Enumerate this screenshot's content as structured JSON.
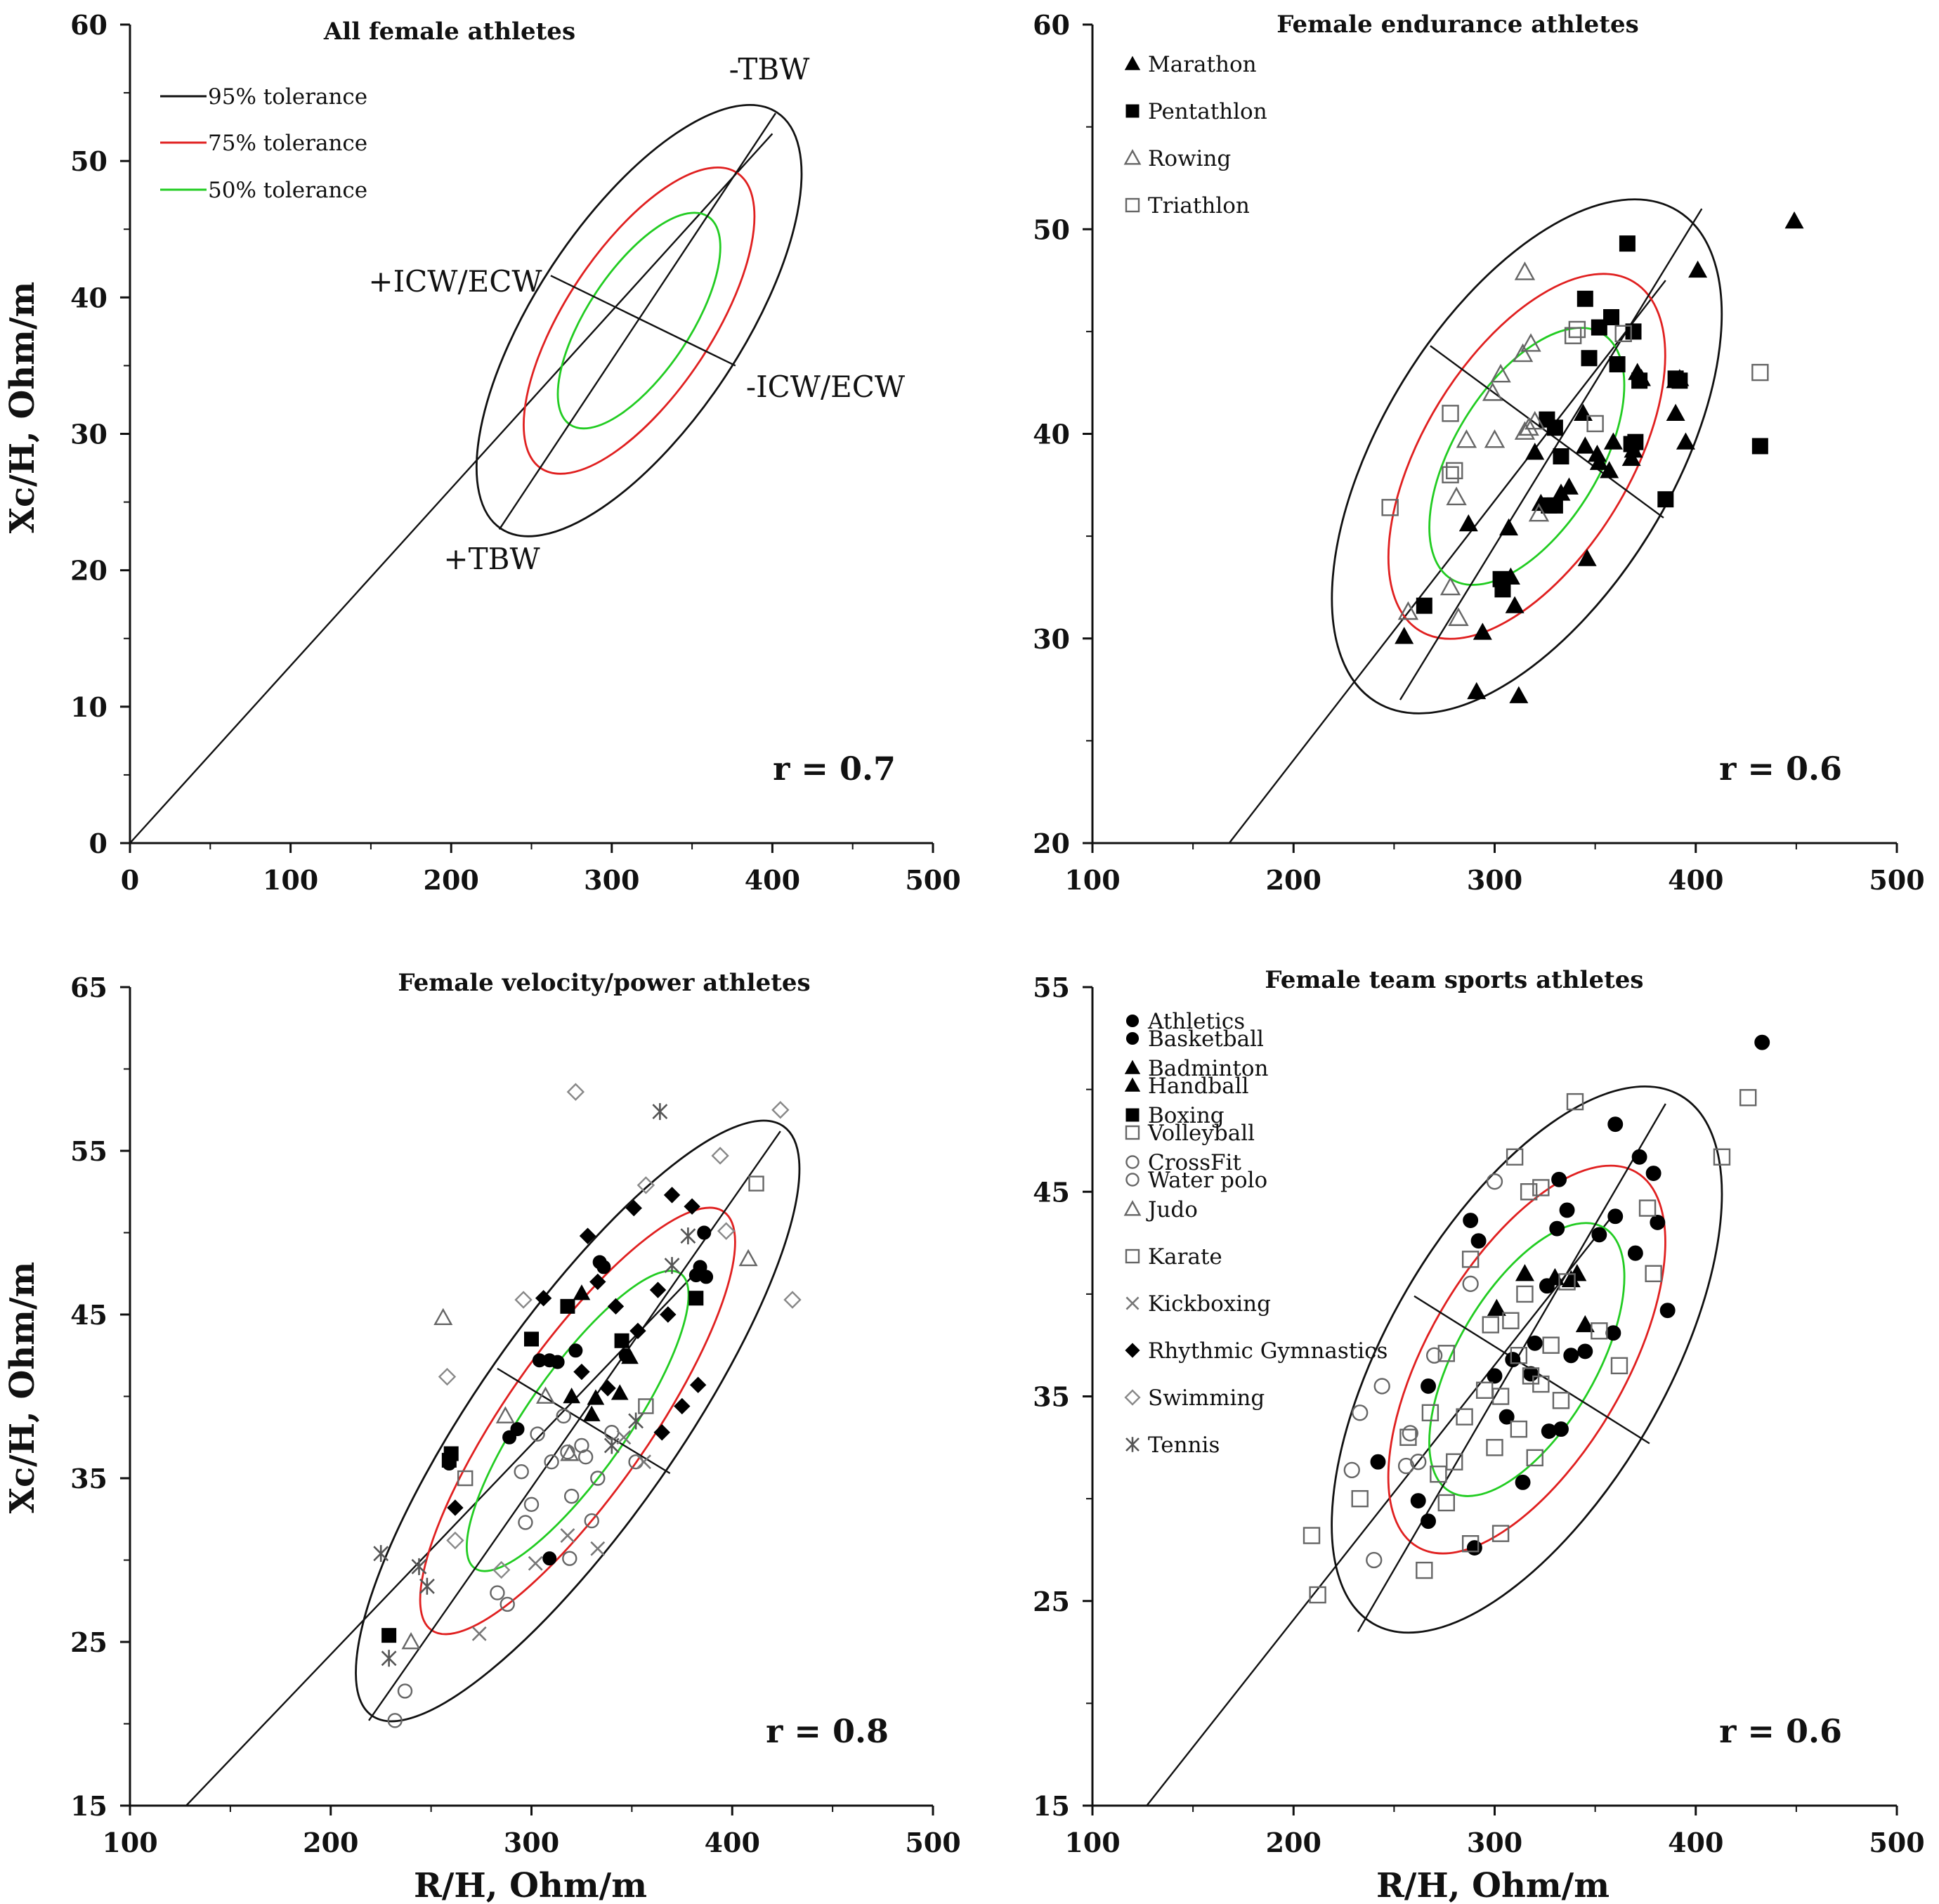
{
  "colors": {
    "tol95": "#111111",
    "tol75": "#e02020",
    "tol50": "#22cc22",
    "ink": "#111111"
  },
  "chart_data": [
    {
      "type": "scatter",
      "title": "All female athletes",
      "xlabel": "",
      "ylabel": "Xc/H, Ohm/m",
      "xlim": [
        0,
        500
      ],
      "ylim": [
        0,
        60
      ],
      "xticks": [
        "0",
        "100",
        "200",
        "300",
        "400",
        "500"
      ],
      "yticks": [
        "0",
        "10",
        "20",
        "30",
        "40",
        "50",
        "60"
      ],
      "r_label": "r = 0.7",
      "tolerance_legend": [
        "95% tolerance",
        "75% tolerance",
        "50% tolerance"
      ],
      "annotations": {
        "minus_tbw": "-TBW",
        "plus_tbw": "+TBW",
        "plus_icw": "+ICW/ECW",
        "minus_icw": "-ICW/ECW"
      },
      "ellipse_center": [
        317,
        38.3
      ],
      "major_axis": [
        [
          230,
          23
        ],
        [
          402,
          53.5
        ]
      ],
      "minor_axis": [
        [
          262,
          41.6
        ],
        [
          377,
          35.0
        ]
      ],
      "regression_line": [
        [
          0,
          0
        ],
        [
          400,
          52
        ]
      ],
      "series": []
    },
    {
      "type": "scatter",
      "title": "Female endurance athletes",
      "xlabel": "",
      "ylabel": "",
      "xlim": [
        100,
        500
      ],
      "ylim": [
        20,
        60
      ],
      "xticks": [
        "100",
        "200",
        "300",
        "400",
        "500"
      ],
      "yticks": [
        "20",
        "30",
        "40",
        "50",
        "60"
      ],
      "r_label": "r = 0.6",
      "ellipse_center": [
        316,
        38.9
      ],
      "major_axis": [
        [
          253,
          27
        ],
        [
          403,
          51
        ]
      ],
      "minor_axis": [
        [
          268,
          44.3
        ],
        [
          384,
          35.9
        ]
      ],
      "regression_line": [
        [
          168,
          20
        ],
        [
          385,
          47.5
        ]
      ],
      "series": [
        {
          "name": "Marathon",
          "marker": "triangle",
          "filled": true,
          "x": [
            449,
            401,
            255,
            287,
            291,
            294,
            307,
            310,
            312,
            323,
            333,
            337,
            344,
            345,
            351,
            352,
            357,
            359,
            368,
            369,
            371,
            373,
            390,
            392,
            395,
            390,
            346,
            320,
            308
          ],
          "y": [
            50.4,
            48.0,
            30.1,
            35.6,
            27.4,
            30.3,
            35.4,
            31.6,
            27.2,
            36.6,
            37.1,
            37.4,
            41.0,
            39.4,
            39.0,
            38.6,
            38.2,
            39.6,
            38.8,
            39.2,
            43.0,
            42.7,
            42.6,
            42.7,
            39.6,
            41.0,
            33.9,
            39.1,
            33.0
          ]
        },
        {
          "name": "Pentathlon",
          "marker": "square",
          "filled": true,
          "x": [
            366,
            345,
            347,
            352,
            358,
            361,
            369,
            372,
            370,
            390,
            392,
            385,
            330,
            333,
            326,
            327,
            330,
            303,
            304,
            265,
            432,
            368
          ],
          "y": [
            49.3,
            46.6,
            43.7,
            45.2,
            45.7,
            43.4,
            45.0,
            42.6,
            39.6,
            42.7,
            42.6,
            36.8,
            40.3,
            38.9,
            40.7,
            36.5,
            36.5,
            32.9,
            32.4,
            31.6,
            39.4,
            39.5
          ]
        },
        {
          "name": "Rowing",
          "marker": "triangle",
          "filled": false,
          "x": [
            315,
            257,
            286,
            281,
            299,
            300,
            303,
            314,
            317,
            318,
            320,
            322,
            315,
            282,
            278
          ],
          "y": [
            47.9,
            31.3,
            39.7,
            36.9,
            42.0,
            39.7,
            42.9,
            43.9,
            40.3,
            44.4,
            40.6,
            36.1,
            40.1,
            31.0,
            32.5
          ]
        },
        {
          "name": "Triathlon",
          "marker": "square",
          "filled": false,
          "x": [
            248,
            278,
            280,
            278,
            339,
            341,
            350,
            364,
            432
          ],
          "y": [
            36.4,
            41.0,
            38.2,
            38.0,
            44.8,
            45.1,
            40.5,
            44.9,
            43.0
          ]
        }
      ]
    },
    {
      "type": "scatter",
      "title": "Female velocity/power athletes",
      "xlabel": "R/H, Ohm/m",
      "ylabel": "Xc/H, Ohm/m",
      "xlim": [
        100,
        500
      ],
      "ylim": [
        15,
        65
      ],
      "xticks": [
        "100",
        "200",
        "300",
        "400",
        "500"
      ],
      "yticks": [
        "15",
        "25",
        "35",
        "45",
        "55",
        "65"
      ],
      "r_label": "r = 0.8",
      "ellipse_center": [
        323,
        38.5
      ],
      "major_axis": [
        [
          219,
          20.2
        ],
        [
          424,
          56.2
        ]
      ],
      "minor_axis": [
        [
          283,
          41.7
        ],
        [
          369,
          35.3
        ]
      ],
      "regression_line": [
        [
          128,
          15
        ],
        [
          383,
          47.7
        ]
      ],
      "series": [
        {
          "name": "Athletics",
          "marker": "circle",
          "filled": true,
          "x": [
            259,
            289,
            293,
            304,
            309,
            313,
            322,
            334,
            336,
            347,
            382,
            384,
            387,
            386,
            309
          ],
          "y": [
            35.9,
            37.5,
            38.0,
            42.2,
            42.2,
            42.1,
            42.8,
            48.2,
            47.9,
            42.5,
            47.4,
            47.9,
            47.3,
            50.0,
            30.1
          ]
        },
        {
          "name": "Badminton",
          "marker": "triangle",
          "filled": true,
          "x": [
            320,
            325,
            330,
            332,
            344,
            349
          ],
          "y": [
            40.0,
            46.3,
            38.9,
            39.9,
            40.2,
            42.4
          ]
        },
        {
          "name": "Boxing",
          "marker": "square",
          "filled": true,
          "x": [
            229,
            260,
            259,
            300,
            318,
            345,
            382
          ],
          "y": [
            25.4,
            36.5,
            36.1,
            43.5,
            45.5,
            43.4,
            46.0
          ]
        },
        {
          "name": "CrossFit",
          "marker": "circle",
          "filled": false,
          "x": [
            232,
            237,
            283,
            288,
            295,
            300,
            303,
            310,
            316,
            318,
            320,
            325,
            327,
            330,
            333,
            340,
            352,
            319,
            297
          ],
          "y": [
            20.2,
            22.0,
            28.0,
            27.3,
            35.4,
            33.4,
            37.7,
            36.0,
            38.8,
            36.6,
            33.9,
            37.0,
            36.3,
            32.4,
            35.0,
            37.8,
            36.0,
            30.1,
            32.3
          ]
        },
        {
          "name": "Judo",
          "marker": "triangle",
          "filled": false,
          "x": [
            256,
            240,
            408,
            287,
            307,
            319
          ],
          "y": [
            44.8,
            25.0,
            48.4,
            38.8,
            40.0,
            36.5
          ]
        },
        {
          "name": "Karate",
          "marker": "square",
          "filled": false,
          "x": [
            267,
            412,
            357
          ],
          "y": [
            35.0,
            53.0,
            39.4
          ]
        },
        {
          "name": "Kickboxing",
          "marker": "x",
          "filled": false,
          "x": [
            274,
            302,
            318,
            333,
            346,
            356
          ],
          "y": [
            25.5,
            29.8,
            31.5,
            30.7,
            37.5,
            36.0
          ]
        },
        {
          "name": "Rhythmic Gymnastics",
          "marker": "diamond",
          "filled": true,
          "x": [
            262,
            306,
            325,
            328,
            333,
            338,
            342,
            351,
            353,
            365,
            370,
            375,
            380,
            383,
            363,
            368
          ],
          "y": [
            33.2,
            46.0,
            41.5,
            49.8,
            47.0,
            40.5,
            45.5,
            51.5,
            44.0,
            37.8,
            52.3,
            39.4,
            51.6,
            40.7,
            46.5,
            45.0
          ]
        },
        {
          "name": "Swimming",
          "marker": "diamond",
          "filled": false,
          "x": [
            322,
            424,
            394,
            430,
            296,
            258,
            262,
            285,
            357,
            397
          ],
          "y": [
            58.6,
            57.5,
            54.7,
            45.9,
            45.9,
            41.2,
            31.2,
            29.4,
            52.9,
            50.1
          ]
        },
        {
          "name": "Tennis",
          "marker": "asterisk",
          "filled": false,
          "x": [
            225,
            229,
            244,
            248,
            364,
            378,
            352,
            340,
            370
          ],
          "y": [
            30.4,
            24.0,
            29.6,
            28.4,
            57.4,
            49.8,
            38.5,
            37.0,
            48.0
          ]
        }
      ]
    },
    {
      "type": "scatter",
      "title": "Female team sports athletes",
      "xlabel": "R/H, Ohm/m",
      "ylabel": "",
      "xlim": [
        100,
        500
      ],
      "ylim": [
        15,
        55
      ],
      "xticks": [
        "100",
        "200",
        "300",
        "400",
        "500"
      ],
      "yticks": [
        "15",
        "25",
        "35",
        "45",
        "55"
      ],
      "r_label": "r = 0.6",
      "ellipse_center": [
        316,
        36.8
      ],
      "major_axis": [
        [
          232,
          23.5
        ],
        [
          385,
          49.3
        ]
      ],
      "minor_axis": [
        [
          260,
          39.9
        ],
        [
          377,
          32.7
        ]
      ],
      "regression_line": [
        [
          127,
          15
        ],
        [
          360,
          44
        ]
      ],
      "series": [
        {
          "name": "Basketball",
          "marker": "circle",
          "filled": true,
          "x": [
            433,
            360,
            372,
            379,
            381,
            386,
            370,
            360,
            359,
            352,
            345,
            336,
            331,
            332,
            326,
            320,
            318,
            309,
            306,
            300,
            292,
            288,
            267,
            262,
            267,
            242,
            290,
            314,
            327,
            333,
            338
          ],
          "y": [
            52.3,
            48.3,
            46.7,
            45.9,
            43.5,
            39.2,
            42.0,
            43.8,
            38.1,
            42.9,
            37.2,
            44.1,
            43.2,
            45.6,
            40.4,
            37.6,
            36.1,
            36.8,
            34.0,
            36.0,
            42.6,
            43.6,
            35.5,
            29.9,
            28.9,
            31.8,
            27.6,
            30.8,
            33.3,
            33.4,
            37.0
          ]
        },
        {
          "name": "Handball",
          "marker": "triangle",
          "filled": true,
          "x": [
            301,
            315,
            330,
            338,
            341,
            345
          ],
          "y": [
            39.3,
            41.0,
            40.8,
            40.7,
            41.0,
            38.5
          ]
        },
        {
          "name": "Volleyball",
          "marker": "square",
          "filled": false,
          "x": [
            340,
            426,
            413,
            376,
            379,
            310,
            317,
            323,
            209,
            212,
            233,
            257,
            265,
            272,
            276,
            280,
            285,
            288,
            295,
            298,
            300,
            303,
            308,
            312,
            315,
            318,
            323,
            328,
            333,
            336,
            352,
            362,
            288,
            303,
            312,
            320,
            276,
            268
          ],
          "y": [
            49.4,
            49.6,
            46.7,
            44.2,
            41.0,
            46.7,
            45.0,
            45.2,
            28.2,
            25.3,
            30.0,
            33.0,
            26.5,
            31.2,
            29.8,
            31.8,
            34.0,
            27.8,
            35.3,
            38.5,
            32.5,
            28.3,
            38.7,
            37.0,
            40.0,
            36.0,
            35.6,
            37.5,
            34.8,
            40.6,
            38.2,
            36.5,
            41.7,
            35.0,
            33.4,
            32.0,
            37.1,
            34.2
          ]
        },
        {
          "name": "Water polo",
          "marker": "circle",
          "filled": false,
          "x": [
            300,
            288,
            233,
            244,
            229,
            240,
            256,
            258,
            262,
            270
          ],
          "y": [
            45.5,
            40.5,
            34.2,
            35.5,
            31.4,
            27.0,
            31.6,
            33.2,
            31.8,
            37.0
          ]
        }
      ]
    }
  ]
}
